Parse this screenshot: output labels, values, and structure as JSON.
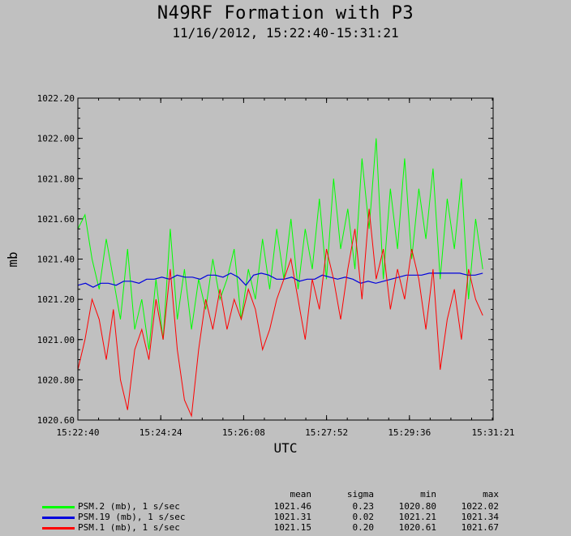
{
  "chart_data": {
    "type": "line",
    "title": "N49RF Formation with P3",
    "subtitle": "11/16/2012, 15:22:40-15:31:21",
    "xlabel": "UTC",
    "ylabel": "mb",
    "x_ticks": [
      "15:22:40",
      "15:24:24",
      "15:26:08",
      "15:27:52",
      "15:29:36",
      "15:31:21"
    ],
    "y_ticks": [
      "1020.60",
      "1020.80",
      "1021.00",
      "1021.20",
      "1021.40",
      "1021.60",
      "1021.80",
      "1022.00",
      "1022.20"
    ],
    "xlim": [
      "15:22:40",
      "15:31:21"
    ],
    "ylim": [
      1020.6,
      1022.2
    ],
    "grid": false,
    "x_sample_interval_s": 10,
    "series": [
      {
        "name": "PSM.2 (mb), 1 s/sec",
        "color": "#00ff00",
        "values": [
          1021.55,
          1021.62,
          1021.4,
          1021.25,
          1021.5,
          1021.3,
          1021.1,
          1021.45,
          1021.05,
          1021.2,
          1020.95,
          1021.3,
          1021.0,
          1021.55,
          1021.1,
          1021.35,
          1021.05,
          1021.3,
          1021.15,
          1021.4,
          1021.2,
          1021.3,
          1021.45,
          1021.1,
          1021.35,
          1021.2,
          1021.5,
          1021.25,
          1021.55,
          1021.3,
          1021.6,
          1021.25,
          1021.55,
          1021.35,
          1021.7,
          1021.3,
          1021.8,
          1021.45,
          1021.65,
          1021.35,
          1021.9,
          1021.55,
          1022.0,
          1021.3,
          1021.75,
          1021.45,
          1021.9,
          1021.4,
          1021.75,
          1021.5,
          1021.85,
          1021.3,
          1021.7,
          1021.45,
          1021.8,
          1021.2,
          1021.6,
          1021.35
        ]
      },
      {
        "name": "PSM.19 (mb), 1 s/sec",
        "color": "#0000dd",
        "values": [
          1021.27,
          1021.28,
          1021.26,
          1021.28,
          1021.28,
          1021.27,
          1021.29,
          1021.29,
          1021.28,
          1021.3,
          1021.3,
          1021.31,
          1021.3,
          1021.32,
          1021.31,
          1021.31,
          1021.3,
          1021.32,
          1021.32,
          1021.31,
          1021.33,
          1021.31,
          1021.27,
          1021.32,
          1021.33,
          1021.32,
          1021.3,
          1021.3,
          1021.31,
          1021.29,
          1021.3,
          1021.3,
          1021.32,
          1021.31,
          1021.3,
          1021.31,
          1021.3,
          1021.28,
          1021.29,
          1021.28,
          1021.29,
          1021.3,
          1021.31,
          1021.32,
          1021.32,
          1021.32,
          1021.33,
          1021.33,
          1021.33,
          1021.33,
          1021.33,
          1021.32,
          1021.32,
          1021.33
        ]
      },
      {
        "name": "PSM.1 (mb), 1 s/sec",
        "color": "#ff0000",
        "values": [
          1020.85,
          1021.0,
          1021.2,
          1021.1,
          1020.9,
          1021.15,
          1020.8,
          1020.65,
          1020.95,
          1021.05,
          1020.9,
          1021.2,
          1021.0,
          1021.35,
          1020.95,
          1020.7,
          1020.62,
          1020.95,
          1021.2,
          1021.05,
          1021.25,
          1021.05,
          1021.2,
          1021.1,
          1021.25,
          1021.15,
          1020.95,
          1021.05,
          1021.2,
          1021.3,
          1021.4,
          1021.2,
          1021.0,
          1021.3,
          1021.15,
          1021.45,
          1021.3,
          1021.1,
          1021.35,
          1021.55,
          1021.2,
          1021.65,
          1021.3,
          1021.45,
          1021.15,
          1021.35,
          1021.2,
          1021.45,
          1021.3,
          1021.05,
          1021.35,
          1020.85,
          1021.1,
          1021.25,
          1021.0,
          1021.35,
          1021.2,
          1021.12
        ]
      }
    ],
    "stats_headers": [
      "mean",
      "sigma",
      "min",
      "max"
    ],
    "stats": [
      {
        "mean": "1021.46",
        "sigma": "0.23",
        "min": "1020.80",
        "max": "1022.02"
      },
      {
        "mean": "1021.31",
        "sigma": "0.02",
        "min": "1021.21",
        "max": "1021.34"
      },
      {
        "mean": "1021.15",
        "sigma": "0.20",
        "min": "1020.61",
        "max": "1021.67"
      }
    ]
  }
}
